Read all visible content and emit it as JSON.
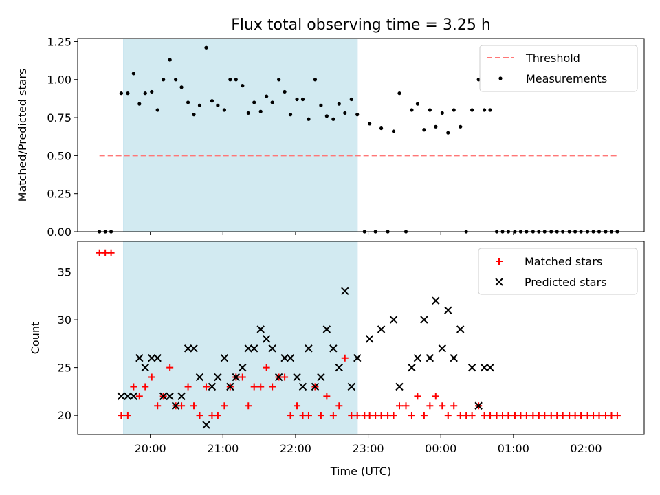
{
  "title": "Flux total observing time = 3.25 h",
  "chart_data": {
    "type": "scatter",
    "x_unit": "time of day (UTC), hours after 00:00 of first night",
    "shaded_interval": {
      "x": [
        19.633,
        22.85
      ],
      "color": "#add8e6"
    },
    "x_ticks": [
      "20:00",
      "21:00",
      "22:00",
      "23:00",
      "00:00",
      "01:00",
      "02:00"
    ],
    "x_tick_values": [
      20,
      21,
      22,
      23,
      24,
      25,
      26
    ],
    "xlabel": "Time (UTC)",
    "panels": [
      {
        "ylabel": "Matched/Predicted stars",
        "ylim": [
          0,
          1.27
        ],
        "y_ticks": [
          "0.00",
          "0.25",
          "0.50",
          "0.75",
          "1.00",
          "1.25"
        ],
        "y_tick_values": [
          0,
          0.25,
          0.5,
          0.75,
          1.0,
          1.25
        ],
        "legend_position": "top-right",
        "threshold": {
          "name": "Threshold",
          "value": 0.5,
          "x_range": [
            19.3,
            26.45
          ],
          "color": "#ff7777"
        },
        "measurements": {
          "name": "Measurements",
          "color": "#000000",
          "points": [
            [
              19.3,
              0
            ],
            [
              19.38,
              0
            ],
            [
              19.46,
              0
            ],
            [
              19.6,
              0.91
            ],
            [
              19.69,
              0.91
            ],
            [
              19.77,
              1.04
            ],
            [
              19.85,
              0.84
            ],
            [
              19.93,
              0.91
            ],
            [
              20.02,
              0.92
            ],
            [
              20.1,
              0.8
            ],
            [
              20.18,
              1.0
            ],
            [
              20.27,
              1.13
            ],
            [
              20.35,
              1.0
            ],
            [
              20.43,
              0.95
            ],
            [
              20.52,
              0.85
            ],
            [
              20.6,
              0.77
            ],
            [
              20.68,
              0.83
            ],
            [
              20.77,
              1.21
            ],
            [
              20.85,
              0.86
            ],
            [
              20.93,
              0.83
            ],
            [
              21.02,
              0.8
            ],
            [
              21.1,
              1.0
            ],
            [
              21.18,
              1.0
            ],
            [
              21.27,
              0.96
            ],
            [
              21.35,
              0.78
            ],
            [
              21.43,
              0.85
            ],
            [
              21.52,
              0.79
            ],
            [
              21.6,
              0.89
            ],
            [
              21.68,
              0.85
            ],
            [
              21.77,
              1.0
            ],
            [
              21.85,
              0.92
            ],
            [
              21.93,
              0.77
            ],
            [
              22.02,
              0.87
            ],
            [
              22.1,
              0.87
            ],
            [
              22.18,
              0.74
            ],
            [
              22.27,
              1.0
            ],
            [
              22.35,
              0.83
            ],
            [
              22.43,
              0.76
            ],
            [
              22.52,
              0.74
            ],
            [
              22.6,
              0.84
            ],
            [
              22.68,
              0.78
            ],
            [
              22.77,
              0.87
            ],
            [
              22.85,
              0.77
            ],
            [
              22.95,
              0
            ],
            [
              23.02,
              0.71
            ],
            [
              23.1,
              0
            ],
            [
              23.18,
              0.68
            ],
            [
              23.27,
              0
            ],
            [
              23.35,
              0.66
            ],
            [
              23.43,
              0.91
            ],
            [
              23.52,
              0
            ],
            [
              23.6,
              0.8
            ],
            [
              23.68,
              0.84
            ],
            [
              23.77,
              0.67
            ],
            [
              23.85,
              0.8
            ],
            [
              23.93,
              0.69
            ],
            [
              24.02,
              0.78
            ],
            [
              24.1,
              0.65
            ],
            [
              24.18,
              0.8
            ],
            [
              24.27,
              0.69
            ],
            [
              24.35,
              0
            ],
            [
              24.43,
              0.8
            ],
            [
              24.52,
              1.0
            ],
            [
              24.6,
              0.8
            ],
            [
              24.68,
              0.8
            ],
            [
              24.77,
              0
            ],
            [
              24.85,
              0
            ],
            [
              24.93,
              0
            ],
            [
              25.02,
              0
            ],
            [
              25.1,
              0
            ],
            [
              25.18,
              0
            ],
            [
              25.27,
              0
            ],
            [
              25.35,
              0
            ],
            [
              25.43,
              0
            ],
            [
              25.52,
              0
            ],
            [
              25.6,
              0
            ],
            [
              25.68,
              0
            ],
            [
              25.77,
              0
            ],
            [
              25.85,
              0
            ],
            [
              25.93,
              0
            ],
            [
              26.02,
              0
            ],
            [
              26.1,
              0
            ],
            [
              26.18,
              0
            ],
            [
              26.27,
              0
            ],
            [
              26.35,
              0
            ],
            [
              26.43,
              0
            ]
          ]
        }
      },
      {
        "ylabel": "Count",
        "ylim": [
          18,
          38.2
        ],
        "y_ticks": [
          "20",
          "25",
          "30",
          "35"
        ],
        "y_tick_values": [
          20,
          25,
          30,
          35
        ],
        "legend_position": "top-right",
        "matched": {
          "name": "Matched stars",
          "color": "#ff0000",
          "points": [
            [
              19.3,
              37
            ],
            [
              19.38,
              37
            ],
            [
              19.46,
              37
            ],
            [
              19.6,
              20
            ],
            [
              19.69,
              20
            ],
            [
              19.77,
              23
            ],
            [
              19.85,
              22
            ],
            [
              19.93,
              23
            ],
            [
              20.02,
              24
            ],
            [
              20.1,
              21
            ],
            [
              20.18,
              22
            ],
            [
              20.27,
              25
            ],
            [
              20.35,
              21
            ],
            [
              20.43,
              21
            ],
            [
              20.52,
              23
            ],
            [
              20.6,
              21
            ],
            [
              20.68,
              20
            ],
            [
              20.77,
              23
            ],
            [
              20.85,
              20
            ],
            [
              20.93,
              20
            ],
            [
              21.02,
              21
            ],
            [
              21.1,
              23
            ],
            [
              21.18,
              24
            ],
            [
              21.27,
              24
            ],
            [
              21.35,
              21
            ],
            [
              21.43,
              23
            ],
            [
              21.52,
              23
            ],
            [
              21.6,
              25
            ],
            [
              21.68,
              23
            ],
            [
              21.77,
              24
            ],
            [
              21.85,
              24
            ],
            [
              21.93,
              20
            ],
            [
              22.02,
              21
            ],
            [
              22.1,
              20
            ],
            [
              22.18,
              20
            ],
            [
              22.27,
              23
            ],
            [
              22.35,
              20
            ],
            [
              22.43,
              22
            ],
            [
              22.52,
              20
            ],
            [
              22.6,
              21
            ],
            [
              22.68,
              26
            ],
            [
              22.77,
              20
            ],
            [
              22.85,
              20
            ],
            [
              22.95,
              20
            ],
            [
              23.02,
              20
            ],
            [
              23.1,
              20
            ],
            [
              23.18,
              20
            ],
            [
              23.27,
              20
            ],
            [
              23.35,
              20
            ],
            [
              23.43,
              21
            ],
            [
              23.52,
              21
            ],
            [
              23.6,
              20
            ],
            [
              23.68,
              22
            ],
            [
              23.77,
              20
            ],
            [
              23.85,
              21
            ],
            [
              23.93,
              22
            ],
            [
              24.02,
              21
            ],
            [
              24.1,
              20
            ],
            [
              24.18,
              21
            ],
            [
              24.27,
              20
            ],
            [
              24.35,
              20
            ],
            [
              24.43,
              20
            ],
            [
              24.52,
              21
            ],
            [
              24.6,
              20
            ],
            [
              24.68,
              20
            ],
            [
              24.77,
              20
            ],
            [
              24.85,
              20
            ],
            [
              24.93,
              20
            ],
            [
              25.02,
              20
            ],
            [
              25.1,
              20
            ],
            [
              25.18,
              20
            ],
            [
              25.27,
              20
            ],
            [
              25.35,
              20
            ],
            [
              25.43,
              20
            ],
            [
              25.52,
              20
            ],
            [
              25.6,
              20
            ],
            [
              25.68,
              20
            ],
            [
              25.77,
              20
            ],
            [
              25.85,
              20
            ],
            [
              25.93,
              20
            ],
            [
              26.02,
              20
            ],
            [
              26.1,
              20
            ],
            [
              26.18,
              20
            ],
            [
              26.27,
              20
            ],
            [
              26.35,
              20
            ],
            [
              26.43,
              20
            ]
          ]
        },
        "predicted": {
          "name": "Predicted stars",
          "color": "#000000",
          "points": [
            [
              19.6,
              22
            ],
            [
              19.69,
              22
            ],
            [
              19.77,
              22
            ],
            [
              19.85,
              26
            ],
            [
              19.93,
              25
            ],
            [
              20.02,
              26
            ],
            [
              20.1,
              26
            ],
            [
              20.18,
              22
            ],
            [
              20.27,
              22
            ],
            [
              20.35,
              21
            ],
            [
              20.43,
              22
            ],
            [
              20.52,
              27
            ],
            [
              20.6,
              27
            ],
            [
              20.68,
              24
            ],
            [
              20.77,
              19
            ],
            [
              20.85,
              23
            ],
            [
              20.93,
              24
            ],
            [
              21.02,
              26
            ],
            [
              21.1,
              23
            ],
            [
              21.18,
              24
            ],
            [
              21.27,
              25
            ],
            [
              21.35,
              27
            ],
            [
              21.43,
              27
            ],
            [
              21.52,
              29
            ],
            [
              21.6,
              28
            ],
            [
              21.68,
              27
            ],
            [
              21.77,
              24
            ],
            [
              21.85,
              26
            ],
            [
              21.93,
              26
            ],
            [
              22.02,
              24
            ],
            [
              22.1,
              23
            ],
            [
              22.18,
              27
            ],
            [
              22.27,
              23
            ],
            [
              22.35,
              24
            ],
            [
              22.43,
              29
            ],
            [
              22.52,
              27
            ],
            [
              22.6,
              25
            ],
            [
              22.68,
              33
            ],
            [
              22.77,
              23
            ],
            [
              22.85,
              26
            ],
            [
              23.02,
              28
            ],
            [
              23.18,
              29
            ],
            [
              23.35,
              30
            ],
            [
              23.43,
              23
            ],
            [
              23.6,
              25
            ],
            [
              23.68,
              26
            ],
            [
              23.77,
              30
            ],
            [
              23.85,
              26
            ],
            [
              23.93,
              32
            ],
            [
              24.02,
              27
            ],
            [
              24.1,
              31
            ],
            [
              24.18,
              26
            ],
            [
              24.27,
              29
            ],
            [
              24.43,
              25
            ],
            [
              24.52,
              21
            ],
            [
              24.6,
              25
            ],
            [
              24.68,
              25
            ]
          ]
        }
      }
    ]
  }
}
